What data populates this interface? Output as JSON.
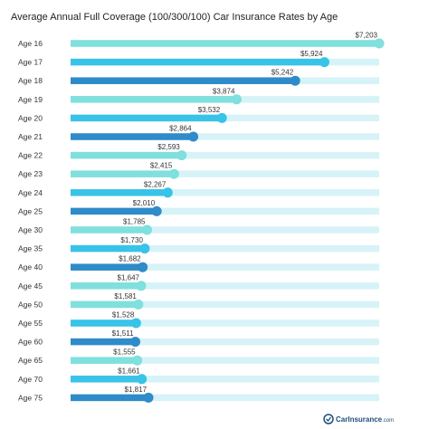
{
  "chart_data": {
    "type": "bar",
    "orientation": "horizontal",
    "title": "Average Annual Full Coverage (100/300/100) Car Insurance Rates by Age",
    "categories": [
      "Age 16",
      "Age 17",
      "Age 18",
      "Age 19",
      "Age 20",
      "Age 21",
      "Age 22",
      "Age 23",
      "Age 24",
      "Age 25",
      "Age 30",
      "Age 35",
      "Age 40",
      "Age 45",
      "Age 50",
      "Age 55",
      "Age 60",
      "Age 65",
      "Age 70",
      "Age 75"
    ],
    "values": [
      7203,
      5924,
      5242,
      3874,
      3532,
      2864,
      2593,
      2415,
      2267,
      2010,
      1785,
      1730,
      1682,
      1647,
      1581,
      1528,
      1511,
      1555,
      1661,
      1817
    ],
    "value_labels": [
      "$7,203",
      "$5,924",
      "$5,242",
      "$3,874",
      "$3,532",
      "$2,864",
      "$2,593",
      "$2,415",
      "$2,267",
      "$2,010",
      "$1,785",
      "$1,730",
      "$1,682",
      "$1,647",
      "$1,581",
      "$1,528",
      "$1,511",
      "$1,555",
      "$1,661",
      "$1,817"
    ],
    "xlim": [
      0,
      7203
    ],
    "grid": false,
    "legend": "none",
    "bar_colors": [
      "#7fe0dd",
      "#38c3e8",
      "#2f8bc9",
      "#7fe0dd",
      "#38c3e8",
      "#2f8bc9",
      "#7fe0dd",
      "#7fe0dd",
      "#38c3e8",
      "#2f8bc9",
      "#7fe0dd",
      "#38c3e8",
      "#2f8bc9",
      "#7fe0dd",
      "#7fe0dd",
      "#38c3e8",
      "#2f8bc9",
      "#7fe0dd",
      "#38c3e8",
      "#2f8bc9"
    ],
    "track_color": "#d6f3f8"
  },
  "brand": {
    "text": "CarInsurance",
    "suffix": ".com",
    "color": "#1f4e7a"
  }
}
